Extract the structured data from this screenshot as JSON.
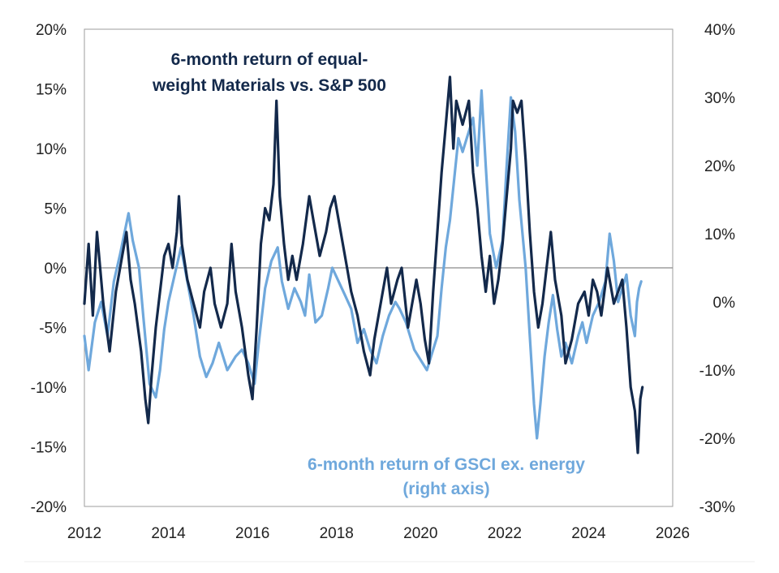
{
  "chart_data": {
    "type": "line",
    "title": "",
    "annotations": [
      {
        "lines": [
          "6-month return of equal-",
          "weight Materials vs. S&P 500"
        ],
        "color": "#13294B"
      },
      {
        "lines": [
          "6-month return of GSCI ex. energy",
          "(right axis)"
        ],
        "color": "#6FA8DC"
      }
    ],
    "x_ticks": [
      "2012",
      "2014",
      "2016",
      "2018",
      "2020",
      "2022",
      "2024",
      "2026"
    ],
    "xlim": [
      2012,
      2026
    ],
    "left_ticks": [
      "20%",
      "15%",
      "10%",
      "5%",
      "0%",
      "-5%",
      "-10%",
      "-15%",
      "-20%"
    ],
    "ylim_left": [
      -20,
      20
    ],
    "right_ticks": [
      "40%",
      "30%",
      "20%",
      "10%",
      "0%",
      "-10%",
      "-20%",
      "-30%"
    ],
    "ylim_right": [
      -30,
      40
    ],
    "zero_line": true,
    "grid": false,
    "series": [
      {
        "name": "6-month return of equal-weight Materials vs. S&P 500",
        "axis": "left",
        "color": "#13294B",
        "points": [
          [
            2012.0,
            -3
          ],
          [
            2012.1,
            2
          ],
          [
            2012.2,
            -4
          ],
          [
            2012.3,
            3
          ],
          [
            2012.45,
            -3
          ],
          [
            2012.6,
            -7
          ],
          [
            2012.75,
            -2
          ],
          [
            2012.9,
            1
          ],
          [
            2013.0,
            3
          ],
          [
            2013.1,
            -1
          ],
          [
            2013.2,
            -3
          ],
          [
            2013.35,
            -7
          ],
          [
            2013.45,
            -11
          ],
          [
            2013.52,
            -13
          ],
          [
            2013.6,
            -9
          ],
          [
            2013.7,
            -5
          ],
          [
            2013.8,
            -2
          ],
          [
            2013.9,
            1
          ],
          [
            2014.0,
            2
          ],
          [
            2014.1,
            0
          ],
          [
            2014.2,
            3
          ],
          [
            2014.25,
            6
          ],
          [
            2014.32,
            2
          ],
          [
            2014.45,
            -1
          ],
          [
            2014.6,
            -3
          ],
          [
            2014.75,
            -5
          ],
          [
            2014.85,
            -2
          ],
          [
            2015.0,
            0
          ],
          [
            2015.1,
            -3
          ],
          [
            2015.25,
            -5
          ],
          [
            2015.4,
            -3
          ],
          [
            2015.5,
            2
          ],
          [
            2015.6,
            -2
          ],
          [
            2015.75,
            -5
          ],
          [
            2015.9,
            -9
          ],
          [
            2016.0,
            -11
          ],
          [
            2016.1,
            -5
          ],
          [
            2016.2,
            2
          ],
          [
            2016.3,
            5
          ],
          [
            2016.4,
            4
          ],
          [
            2016.5,
            7
          ],
          [
            2016.57,
            14
          ],
          [
            2016.65,
            6
          ],
          [
            2016.75,
            2
          ],
          [
            2016.85,
            -1
          ],
          [
            2016.95,
            1
          ],
          [
            2017.05,
            -1
          ],
          [
            2017.2,
            2
          ],
          [
            2017.35,
            6
          ],
          [
            2017.45,
            4
          ],
          [
            2017.6,
            1
          ],
          [
            2017.75,
            3
          ],
          [
            2017.85,
            5
          ],
          [
            2017.95,
            6
          ],
          [
            2018.05,
            4
          ],
          [
            2018.15,
            2
          ],
          [
            2018.25,
            0
          ],
          [
            2018.35,
            -2
          ],
          [
            2018.5,
            -4
          ],
          [
            2018.65,
            -7
          ],
          [
            2018.8,
            -9
          ],
          [
            2018.9,
            -6
          ],
          [
            2019.0,
            -4
          ],
          [
            2019.1,
            -2
          ],
          [
            2019.2,
            0
          ],
          [
            2019.3,
            -3
          ],
          [
            2019.45,
            -1
          ],
          [
            2019.55,
            0
          ],
          [
            2019.7,
            -5
          ],
          [
            2019.8,
            -3
          ],
          [
            2019.9,
            -1
          ],
          [
            2020.0,
            -3
          ],
          [
            2020.1,
            -6
          ],
          [
            2020.2,
            -8
          ],
          [
            2020.3,
            -2
          ],
          [
            2020.4,
            3
          ],
          [
            2020.5,
            8
          ],
          [
            2020.6,
            12
          ],
          [
            2020.7,
            16
          ],
          [
            2020.78,
            10
          ],
          [
            2020.85,
            14
          ],
          [
            2021.0,
            12
          ],
          [
            2021.15,
            14
          ],
          [
            2021.25,
            8
          ],
          [
            2021.35,
            5
          ],
          [
            2021.45,
            1
          ],
          [
            2021.55,
            -2
          ],
          [
            2021.65,
            1
          ],
          [
            2021.75,
            -3
          ],
          [
            2021.85,
            -1
          ],
          [
            2021.95,
            2
          ],
          [
            2022.05,
            6
          ],
          [
            2022.15,
            10
          ],
          [
            2022.2,
            14
          ],
          [
            2022.3,
            13
          ],
          [
            2022.4,
            14
          ],
          [
            2022.5,
            9
          ],
          [
            2022.6,
            3
          ],
          [
            2022.7,
            -2
          ],
          [
            2022.8,
            -5
          ],
          [
            2022.9,
            -3
          ],
          [
            2023.0,
            0
          ],
          [
            2023.1,
            3
          ],
          [
            2023.2,
            -1
          ],
          [
            2023.35,
            -4
          ],
          [
            2023.45,
            -8
          ],
          [
            2023.6,
            -6
          ],
          [
            2023.75,
            -3
          ],
          [
            2023.9,
            -2
          ],
          [
            2024.0,
            -4
          ],
          [
            2024.1,
            -1
          ],
          [
            2024.2,
            -2
          ],
          [
            2024.3,
            -4
          ],
          [
            2024.45,
            0
          ],
          [
            2024.6,
            -3
          ],
          [
            2024.7,
            -2
          ],
          [
            2024.8,
            -1
          ],
          [
            2024.9,
            -5
          ],
          [
            2025.0,
            -10
          ],
          [
            2025.1,
            -12
          ],
          [
            2025.17,
            -15.5
          ],
          [
            2025.23,
            -11
          ],
          [
            2025.28,
            -10
          ]
        ]
      },
      {
        "name": "6-month return of GSCI ex. energy",
        "axis": "right",
        "color": "#6FA8DC",
        "points": [
          [
            2012.0,
            -5
          ],
          [
            2012.1,
            -10
          ],
          [
            2012.25,
            -3
          ],
          [
            2012.4,
            0
          ],
          [
            2012.55,
            -5
          ],
          [
            2012.7,
            3
          ],
          [
            2012.85,
            7
          ],
          [
            2012.95,
            10
          ],
          [
            2013.05,
            13
          ],
          [
            2013.15,
            9
          ],
          [
            2013.3,
            5
          ],
          [
            2013.4,
            -2
          ],
          [
            2013.55,
            -12
          ],
          [
            2013.7,
            -14
          ],
          [
            2013.8,
            -10
          ],
          [
            2013.9,
            -4
          ],
          [
            2014.0,
            0
          ],
          [
            2014.15,
            4
          ],
          [
            2014.3,
            8
          ],
          [
            2014.45,
            3
          ],
          [
            2014.6,
            -2
          ],
          [
            2014.75,
            -8
          ],
          [
            2014.9,
            -11
          ],
          [
            2015.05,
            -9
          ],
          [
            2015.2,
            -6
          ],
          [
            2015.4,
            -10
          ],
          [
            2015.6,
            -8
          ],
          [
            2015.75,
            -7
          ],
          [
            2015.9,
            -9
          ],
          [
            2016.05,
            -12
          ],
          [
            2016.15,
            -6
          ],
          [
            2016.3,
            2
          ],
          [
            2016.45,
            6
          ],
          [
            2016.6,
            8
          ],
          [
            2016.7,
            3
          ],
          [
            2016.85,
            -1
          ],
          [
            2017.0,
            2
          ],
          [
            2017.15,
            0
          ],
          [
            2017.25,
            -2
          ],
          [
            2017.35,
            4
          ],
          [
            2017.5,
            -3
          ],
          [
            2017.65,
            -2
          ],
          [
            2017.8,
            2
          ],
          [
            2017.9,
            5
          ],
          [
            2018.05,
            3
          ],
          [
            2018.2,
            1
          ],
          [
            2018.35,
            -1
          ],
          [
            2018.5,
            -6
          ],
          [
            2018.65,
            -4
          ],
          [
            2018.8,
            -7
          ],
          [
            2018.95,
            -9
          ],
          [
            2019.1,
            -5
          ],
          [
            2019.25,
            -2
          ],
          [
            2019.4,
            0
          ],
          [
            2019.5,
            -1
          ],
          [
            2019.65,
            -3
          ],
          [
            2019.85,
            -7
          ],
          [
            2020.05,
            -9
          ],
          [
            2020.15,
            -10
          ],
          [
            2020.25,
            -8
          ],
          [
            2020.4,
            -5
          ],
          [
            2020.5,
            2
          ],
          [
            2020.6,
            8
          ],
          [
            2020.7,
            12
          ],
          [
            2020.8,
            18
          ],
          [
            2020.9,
            24
          ],
          [
            2021.0,
            22
          ],
          [
            2021.1,
            24
          ],
          [
            2021.25,
            27
          ],
          [
            2021.35,
            20
          ],
          [
            2021.45,
            31
          ],
          [
            2021.55,
            20
          ],
          [
            2021.65,
            10
          ],
          [
            2021.8,
            5
          ],
          [
            2021.95,
            9
          ],
          [
            2022.05,
            20
          ],
          [
            2022.15,
            30
          ],
          [
            2022.25,
            25
          ],
          [
            2022.35,
            15
          ],
          [
            2022.5,
            5
          ],
          [
            2022.6,
            -5
          ],
          [
            2022.7,
            -15
          ],
          [
            2022.77,
            -20
          ],
          [
            2022.85,
            -15
          ],
          [
            2022.95,
            -8
          ],
          [
            2023.05,
            -3
          ],
          [
            2023.15,
            1
          ],
          [
            2023.25,
            -4
          ],
          [
            2023.35,
            -8
          ],
          [
            2023.45,
            -6
          ],
          [
            2023.6,
            -9
          ],
          [
            2023.75,
            -5
          ],
          [
            2023.85,
            -3
          ],
          [
            2023.95,
            -6
          ],
          [
            2024.1,
            -2
          ],
          [
            2024.25,
            0
          ],
          [
            2024.4,
            3
          ],
          [
            2024.5,
            10
          ],
          [
            2024.6,
            6
          ],
          [
            2024.7,
            0
          ],
          [
            2024.8,
            2
          ],
          [
            2024.9,
            4
          ],
          [
            2025.0,
            -2
          ],
          [
            2025.1,
            -5
          ],
          [
            2025.15,
            0
          ],
          [
            2025.2,
            2
          ],
          [
            2025.25,
            3
          ]
        ]
      }
    ]
  }
}
